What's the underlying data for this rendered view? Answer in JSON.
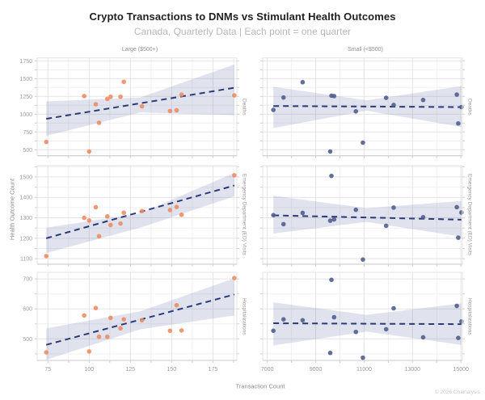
{
  "header": {
    "title": "Crypto Transactions to DNMs vs Stimulant Health Outcomes",
    "subtitle": "Canada, Quarterly Data | Each point = one quarter"
  },
  "axes": {
    "x_title": "Transaction Count",
    "y_title": "Health Outcome Count"
  },
  "footer": {
    "credit": "© 2026 Chainalysis"
  },
  "colors": {
    "title_text": "#1f1f1f",
    "subtitle_text": "#b8b8b8",
    "muted_text": "#8e8e8e",
    "tick_text": "#9b9b9b",
    "credit_text": "#c6c6c6",
    "grid_major": "#e3e3e3",
    "grid_minor": "#f0f0f0",
    "axis_line": "#c9c9c9",
    "tick_mark": "#cfcfcf",
    "point_large": "#ee8a5e",
    "point_small": "#4d5b8b",
    "trend": "#2c3a78",
    "band": "rgba(124,136,178,0.24)"
  },
  "chart_data": {
    "type": "scatter",
    "title": "Crypto Transactions to DNMs vs Stimulant Health Outcomes",
    "subtitle": "Canada, Quarterly Data | Each point = one quarter",
    "xlabel": "Transaction Count",
    "ylabel": "Health Outcome Count",
    "grid": true,
    "legend": "none",
    "facet_cols": [
      {
        "label": "Large ($500+)",
        "ticks": [
          75,
          100,
          125,
          150,
          175
        ],
        "domain": [
          68.5,
          189.5
        ]
      },
      {
        "label": "Small (<$500)",
        "ticks": [
          7000,
          9000,
          11000,
          13000,
          15000
        ],
        "domain": [
          6810,
          15060
        ]
      }
    ],
    "facet_rows": [
      {
        "label": "Deaths",
        "ticks": [
          500,
          750,
          1000,
          1250,
          1500,
          1750
        ],
        "domain": [
          416,
          1791
        ]
      },
      {
        "label": "Emergency Department (ED) Visits",
        "ticks": [
          1100,
          1200,
          1300,
          1400,
          1500
        ],
        "domain": [
          1073,
          1555
        ]
      },
      {
        "label": "Hospitalizations",
        "ticks": [
          500,
          600,
          700
        ],
        "domain": [
          428,
          722
        ]
      }
    ],
    "panels": [
      {
        "row": 0,
        "col": 0,
        "name": "deaths-large",
        "points": [
          [
            74,
            610
          ],
          [
            97,
            1255
          ],
          [
            100,
            475
          ],
          [
            104,
            1140
          ],
          [
            106,
            880
          ],
          [
            111,
            1215
          ],
          [
            113,
            1245
          ],
          [
            119,
            1245
          ],
          [
            121,
            1455
          ],
          [
            132,
            1110
          ],
          [
            149,
            1045
          ],
          [
            153,
            1055
          ],
          [
            156,
            1275
          ],
          [
            188,
            1265
          ]
        ],
        "trend": [
          [
            74,
            935
          ],
          [
            188,
            1372
          ]
        ],
        "band": {
          "x": [
            74,
            131,
            188
          ],
          "low": [
            695,
            1025,
            985
          ],
          "high": [
            1180,
            1235,
            1700
          ]
        }
      },
      {
        "row": 0,
        "col": 1,
        "name": "deaths-small",
        "points": [
          [
            7250,
            1060
          ],
          [
            7670,
            1235
          ],
          [
            8460,
            1450
          ],
          [
            9600,
            475
          ],
          [
            9650,
            1260
          ],
          [
            9760,
            1255
          ],
          [
            10660,
            1040
          ],
          [
            10950,
            600
          ],
          [
            11910,
            1230
          ],
          [
            12220,
            1130
          ],
          [
            13440,
            1200
          ],
          [
            14830,
            1275
          ],
          [
            14890,
            870
          ],
          [
            15020,
            1100
          ]
        ],
        "trend": [
          [
            7250,
            1115
          ],
          [
            15020,
            1100
          ]
        ],
        "band": {
          "x": [
            7250,
            11100,
            15020
          ],
          "low": [
            805,
            1050,
            820
          ],
          "high": [
            1385,
            1195,
            1395
          ]
        }
      },
      {
        "row": 1,
        "col": 0,
        "name": "ed-visits-large",
        "points": [
          [
            74,
            1113
          ],
          [
            97,
            1300
          ],
          [
            100,
            1287
          ],
          [
            104,
            1352
          ],
          [
            106,
            1210
          ],
          [
            111,
            1307
          ],
          [
            113,
            1265
          ],
          [
            119,
            1272
          ],
          [
            121,
            1325
          ],
          [
            132,
            1333
          ],
          [
            149,
            1338
          ],
          [
            153,
            1353
          ],
          [
            156,
            1315
          ],
          [
            188,
            1508
          ]
        ],
        "trend": [
          [
            74,
            1200
          ],
          [
            188,
            1458
          ]
        ],
        "band": {
          "x": [
            74,
            131,
            188
          ],
          "low": [
            1128,
            1252,
            1405
          ],
          "high": [
            1252,
            1322,
            1520
          ]
        }
      },
      {
        "row": 1,
        "col": 1,
        "name": "ed-visits-small",
        "points": [
          [
            7250,
            1313
          ],
          [
            7670,
            1269
          ],
          [
            8460,
            1324
          ],
          [
            9600,
            1286
          ],
          [
            9650,
            1505
          ],
          [
            9760,
            1292
          ],
          [
            10660,
            1339
          ],
          [
            10950,
            1096
          ],
          [
            11910,
            1261
          ],
          [
            12220,
            1350
          ],
          [
            13440,
            1303
          ],
          [
            14830,
            1352
          ],
          [
            14890,
            1203
          ],
          [
            15020,
            1326
          ]
        ],
        "trend": [
          [
            7250,
            1312
          ],
          [
            15020,
            1291
          ]
        ],
        "band": {
          "x": [
            7250,
            11100,
            15020
          ],
          "low": [
            1223,
            1280,
            1208
          ],
          "high": [
            1408,
            1347,
            1382
          ]
        }
      },
      {
        "row": 2,
        "col": 0,
        "name": "hospitalizations-large",
        "points": [
          [
            74,
            455
          ],
          [
            97,
            578
          ],
          [
            100,
            458
          ],
          [
            104,
            603
          ],
          [
            106,
            507
          ],
          [
            111,
            507
          ],
          [
            113,
            570
          ],
          [
            119,
            535
          ],
          [
            121,
            565
          ],
          [
            132,
            562
          ],
          [
            149,
            527
          ],
          [
            153,
            612
          ],
          [
            156,
            528
          ],
          [
            188,
            703
          ]
        ],
        "trend": [
          [
            74,
            480
          ],
          [
            188,
            648
          ]
        ],
        "band": {
          "x": [
            74,
            131,
            188
          ],
          "low": [
            430,
            532,
            578
          ],
          "high": [
            535,
            592,
            702
          ]
        }
      },
      {
        "row": 2,
        "col": 1,
        "name": "hospitalizations-small",
        "points": [
          [
            7250,
            527
          ],
          [
            7670,
            565
          ],
          [
            8460,
            562
          ],
          [
            9600,
            453
          ],
          [
            9650,
            697
          ],
          [
            9760,
            572
          ],
          [
            10660,
            523
          ],
          [
            10950,
            437
          ],
          [
            11910,
            532
          ],
          [
            12220,
            602
          ],
          [
            13440,
            505
          ],
          [
            14830,
            610
          ],
          [
            14890,
            503
          ],
          [
            15020,
            558
          ]
        ],
        "trend": [
          [
            7250,
            552
          ],
          [
            15020,
            549
          ]
        ],
        "band": {
          "x": [
            7250,
            11100,
            15020
          ],
          "low": [
            478,
            524,
            480
          ],
          "high": [
            622,
            580,
            618
          ]
        }
      }
    ]
  }
}
